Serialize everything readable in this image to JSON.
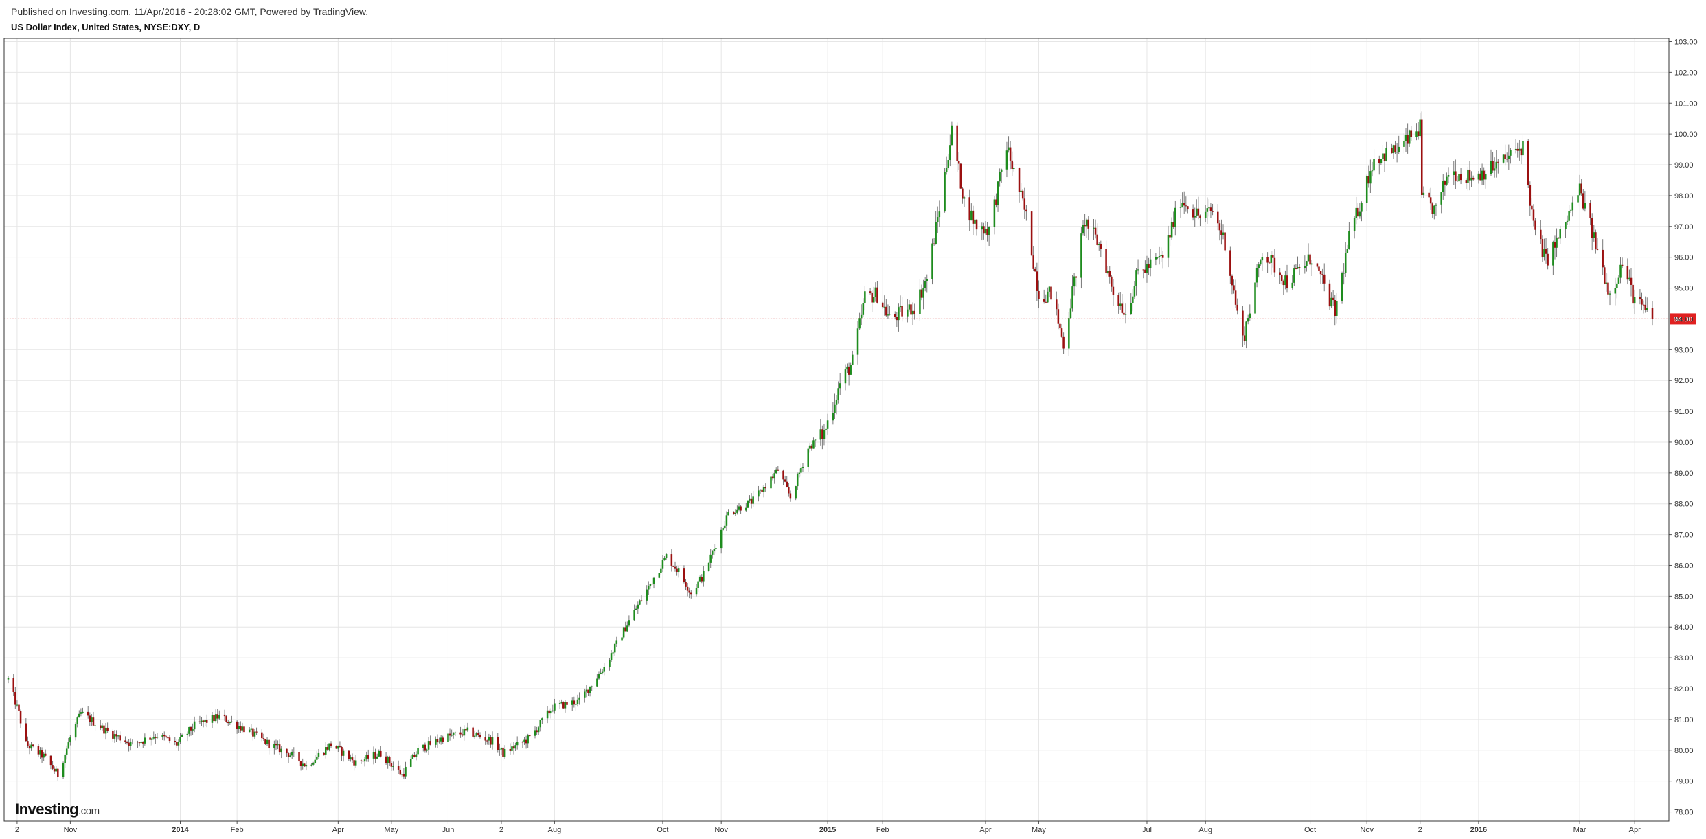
{
  "header": {
    "published": "Published on Investing.com, 11/Apr/2016 - 20:28:02 GMT, Powered by TradingView.",
    "title": "US Dollar Index, United States, NYSE:DXY, D"
  },
  "logo": {
    "brand": "Investing",
    "suffix": ".com"
  },
  "colors": {
    "up": "#1e8c1e",
    "down": "#9b1010",
    "wick": "#777777",
    "grid": "#e6e6e6",
    "frame": "#333333",
    "price_line": "#e02020",
    "price_tag_bg": "#e02020",
    "price_tag_text": "#ffffff"
  },
  "chart_data": {
    "type": "candlestick",
    "title": "US Dollar Index, United States, NYSE:DXY, D",
    "interval": "D",
    "ylim": [
      77.7,
      103.1
    ],
    "yticks": [
      78,
      79,
      80,
      81,
      82,
      83,
      84,
      85,
      86,
      87,
      88,
      89,
      90,
      91,
      92,
      93,
      94,
      95,
      96,
      97,
      98,
      99,
      100,
      101,
      102,
      103
    ],
    "ytick_labels": [
      "78.00",
      "79.00",
      "80.00",
      "81.00",
      "82.00",
      "83.00",
      "84.00",
      "85.00",
      "86.00",
      "87.00",
      "88.00",
      "89.00",
      "90.00",
      "91.00",
      "92.00",
      "93.00",
      "94.00",
      "95.00",
      "96.00",
      "97.00",
      "98.00",
      "99.00",
      "100.00",
      "101.00",
      "102.00",
      "103.00"
    ],
    "xticks": [
      {
        "label": "2",
        "date": "2013-10-02",
        "bold": false
      },
      {
        "label": "Nov",
        "date": "2013-11-01",
        "bold": false
      },
      {
        "label": "2014",
        "date": "2014-01-02",
        "bold": true
      },
      {
        "label": "Feb",
        "date": "2014-02-03",
        "bold": false
      },
      {
        "label": "Apr",
        "date": "2014-04-01",
        "bold": false
      },
      {
        "label": "May",
        "date": "2014-05-01",
        "bold": false
      },
      {
        "label": "Jun",
        "date": "2014-06-02",
        "bold": false
      },
      {
        "label": "2",
        "date": "2014-07-02",
        "bold": false
      },
      {
        "label": "Aug",
        "date": "2014-08-01",
        "bold": false
      },
      {
        "label": "Oct",
        "date": "2014-10-01",
        "bold": false
      },
      {
        "label": "Nov",
        "date": "2014-11-03",
        "bold": false
      },
      {
        "label": "2015",
        "date": "2015-01-02",
        "bold": true
      },
      {
        "label": "Feb",
        "date": "2015-02-02",
        "bold": false
      },
      {
        "label": "Apr",
        "date": "2015-04-01",
        "bold": false
      },
      {
        "label": "May",
        "date": "2015-05-01",
        "bold": false
      },
      {
        "label": "Jul",
        "date": "2015-07-01",
        "bold": false
      },
      {
        "label": "Aug",
        "date": "2015-08-03",
        "bold": false
      },
      {
        "label": "Oct",
        "date": "2015-10-01",
        "bold": false
      },
      {
        "label": "Nov",
        "date": "2015-11-02",
        "bold": false
      },
      {
        "label": "2",
        "date": "2015-12-02",
        "bold": false
      },
      {
        "label": "2016",
        "date": "2016-01-04",
        "bold": true
      },
      {
        "label": "Mar",
        "date": "2016-03-01",
        "bold": false
      },
      {
        "label": "Apr",
        "date": "2016-04-01",
        "bold": false
      }
    ],
    "date_range": [
      "2013-09-27",
      "2016-04-11"
    ],
    "close_path": [
      [
        "2013-09-27",
        82.3
      ],
      [
        "2013-10-03",
        81.2
      ],
      [
        "2013-10-07",
        80.2
      ],
      [
        "2013-10-17",
        79.8
      ],
      [
        "2013-10-25",
        79.2
      ],
      [
        "2013-11-01",
        80.4
      ],
      [
        "2013-11-07",
        81.2
      ],
      [
        "2013-11-22",
        80.6
      ],
      [
        "2013-12-06",
        80.2
      ],
      [
        "2013-12-20",
        80.5
      ],
      [
        "2013-12-31",
        80.2
      ],
      [
        "2014-01-10",
        80.8
      ],
      [
        "2014-01-24",
        81.1
      ],
      [
        "2014-02-07",
        80.7
      ],
      [
        "2014-02-21",
        80.2
      ],
      [
        "2014-03-07",
        79.8
      ],
      [
        "2014-03-14",
        79.5
      ],
      [
        "2014-03-28",
        80.2
      ],
      [
        "2014-04-11",
        79.6
      ],
      [
        "2014-04-25",
        79.9
      ],
      [
        "2014-05-07",
        79.2
      ],
      [
        "2014-05-16",
        80.0
      ],
      [
        "2014-05-30",
        80.4
      ],
      [
        "2014-06-13",
        80.6
      ],
      [
        "2014-06-27",
        80.3
      ],
      [
        "2014-07-03",
        79.9
      ],
      [
        "2014-07-18",
        80.4
      ],
      [
        "2014-07-31",
        81.4
      ],
      [
        "2014-08-15",
        81.6
      ],
      [
        "2014-08-29",
        82.7
      ],
      [
        "2014-09-12",
        84.2
      ],
      [
        "2014-09-26",
        85.6
      ],
      [
        "2014-10-03",
        86.3
      ],
      [
        "2014-10-10",
        85.8
      ],
      [
        "2014-10-17",
        85.1
      ],
      [
        "2014-10-24",
        85.7
      ],
      [
        "2014-11-07",
        87.7
      ],
      [
        "2014-11-21",
        88.1
      ],
      [
        "2014-12-05",
        89.1
      ],
      [
        "2014-12-12",
        88.2
      ],
      [
        "2014-12-22",
        89.8
      ],
      [
        "2014-12-31",
        90.3
      ],
      [
        "2015-01-09",
        91.9
      ],
      [
        "2015-01-16",
        92.6
      ],
      [
        "2015-01-23",
        94.7
      ],
      [
        "2015-01-30",
        94.8
      ],
      [
        "2015-02-06",
        94.0
      ],
      [
        "2015-02-20",
        94.4
      ],
      [
        "2015-02-27",
        95.3
      ],
      [
        "2015-03-06",
        97.6
      ],
      [
        "2015-03-13",
        100.1
      ],
      [
        "2015-03-20",
        97.8
      ],
      [
        "2015-03-27",
        97.0
      ],
      [
        "2015-04-03",
        96.9
      ],
      [
        "2015-04-13",
        99.6
      ],
      [
        "2015-04-24",
        97.3
      ],
      [
        "2015-05-01",
        94.8
      ],
      [
        "2015-05-08",
        94.8
      ],
      [
        "2015-05-15",
        93.2
      ],
      [
        "2015-05-27",
        97.2
      ],
      [
        "2015-06-05",
        96.3
      ],
      [
        "2015-06-12",
        94.9
      ],
      [
        "2015-06-19",
        94.2
      ],
      [
        "2015-06-26",
        95.5
      ],
      [
        "2015-07-10",
        96.0
      ],
      [
        "2015-07-20",
        97.9
      ],
      [
        "2015-07-31",
        97.3
      ],
      [
        "2015-08-07",
        97.5
      ],
      [
        "2015-08-14",
        96.5
      ],
      [
        "2015-08-21",
        94.2
      ],
      [
        "2015-08-24",
        93.3
      ],
      [
        "2015-09-04",
        96.2
      ],
      [
        "2015-09-18",
        95.2
      ],
      [
        "2015-10-02",
        96.0
      ],
      [
        "2015-10-15",
        94.2
      ],
      [
        "2015-10-23",
        96.6
      ],
      [
        "2015-11-06",
        99.2
      ],
      [
        "2015-11-20",
        99.5
      ],
      [
        "2015-12-02",
        100.2
      ],
      [
        "2015-12-03",
        97.9
      ],
      [
        "2015-12-11",
        97.5
      ],
      [
        "2015-12-18",
        98.8
      ],
      [
        "2015-12-31",
        98.6
      ],
      [
        "2016-01-15",
        99.0
      ],
      [
        "2016-01-29",
        99.6
      ],
      [
        "2016-02-04",
        97.0
      ],
      [
        "2016-02-11",
        95.9
      ],
      [
        "2016-02-19",
        96.7
      ],
      [
        "2016-03-01",
        98.2
      ],
      [
        "2016-03-11",
        96.2
      ],
      [
        "2016-03-18",
        94.8
      ],
      [
        "2016-03-25",
        95.8
      ],
      [
        "2016-04-01",
        94.6
      ],
      [
        "2016-04-11",
        94.0
      ]
    ],
    "last_price": 94.0,
    "last_price_label": "94.00",
    "grid": true,
    "legend": "none"
  }
}
